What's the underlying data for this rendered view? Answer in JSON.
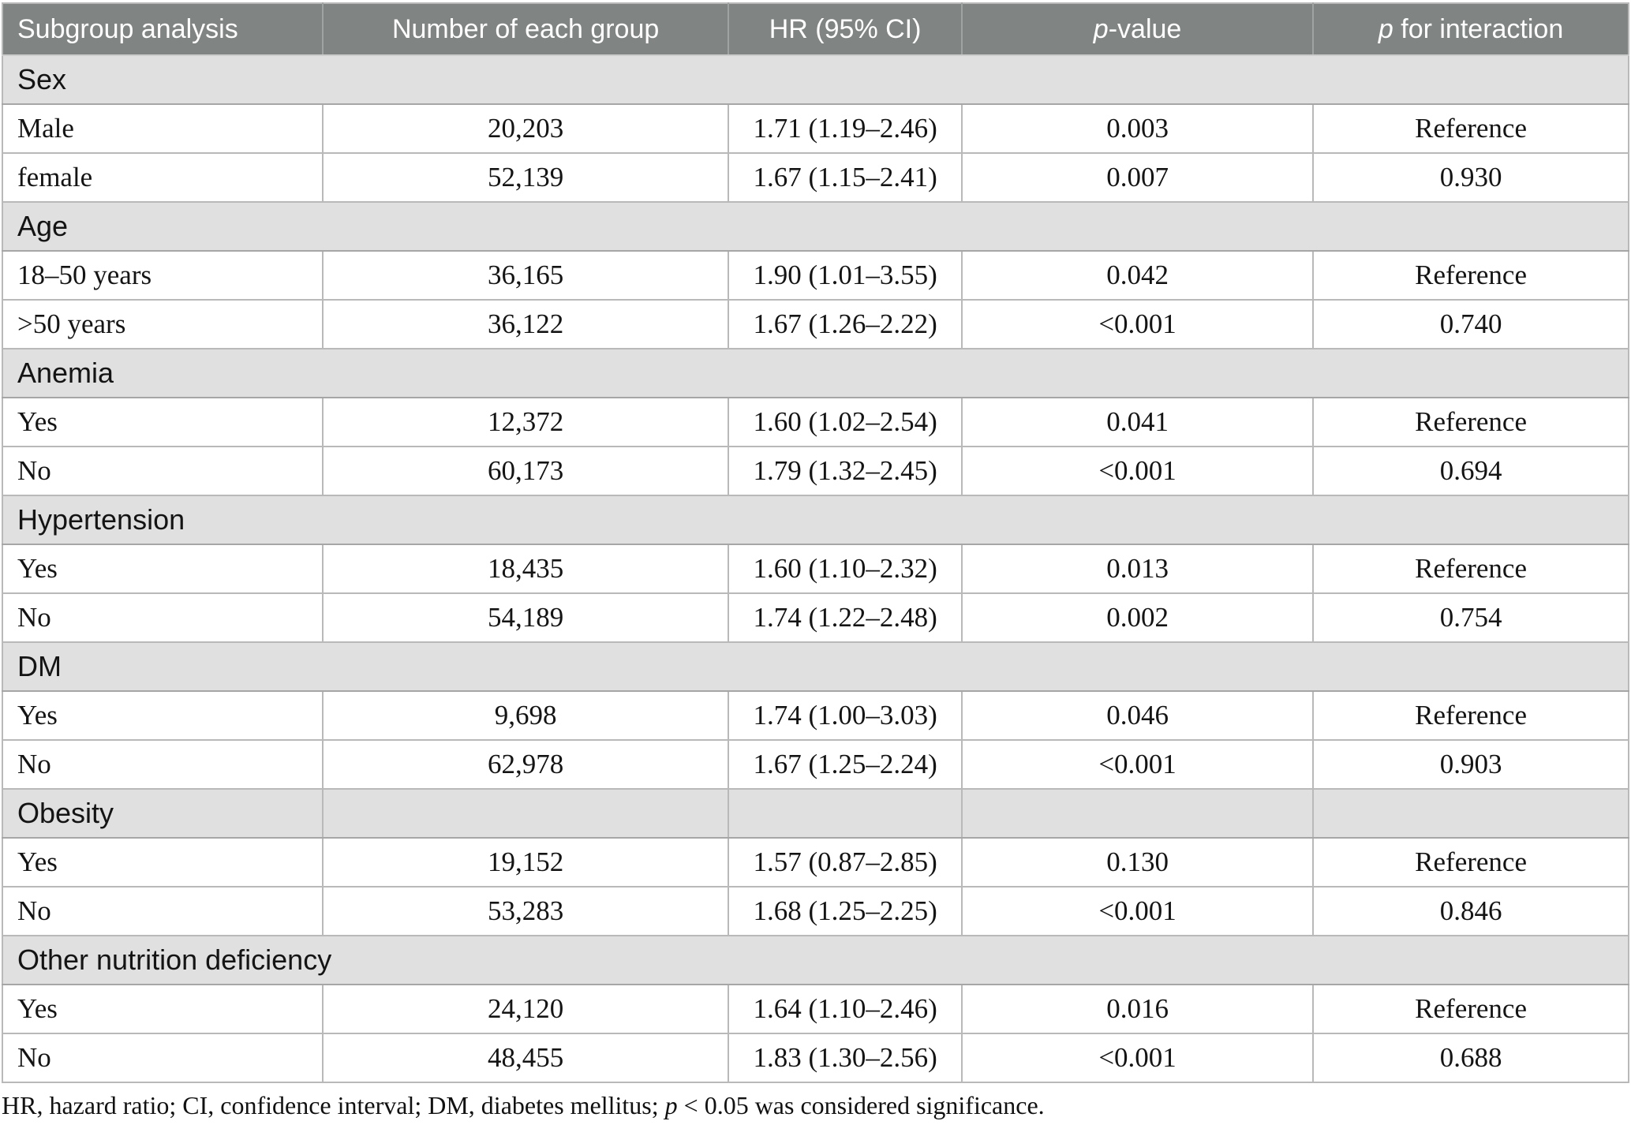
{
  "colors": {
    "header_bg": "#808483",
    "header_text": "#ffffff",
    "header_divider": "#9fa3a2",
    "section_bg": "#e0e0e0",
    "border_light": "#b9b9b9",
    "border_dark": "#a6a6a6",
    "text": "#141414"
  },
  "table": {
    "header": [
      {
        "parts": [
          {
            "t": "Subgroup analysis"
          }
        ]
      },
      {
        "parts": [
          {
            "t": "Number of each group"
          }
        ]
      },
      {
        "parts": [
          {
            "t": "HR (95% CI)"
          }
        ]
      },
      {
        "parts": [
          {
            "t": "p",
            "i": true
          },
          {
            "t": "-value"
          }
        ]
      },
      {
        "parts": [
          {
            "t": "p",
            "i": true
          },
          {
            "t": " for interaction"
          }
        ]
      }
    ],
    "sections": [
      {
        "label": "Sex",
        "split_cells": false,
        "rows": [
          {
            "name": "Male",
            "n": "20,203",
            "hr": "1.71 (1.19–2.46)",
            "p": "0.003",
            "p_interaction": "Reference"
          },
          {
            "name": "female",
            "n": "52,139",
            "hr": "1.67 (1.15–2.41)",
            "p": "0.007",
            "p_interaction": "0.930"
          }
        ]
      },
      {
        "label": "Age",
        "split_cells": false,
        "rows": [
          {
            "name": "18–50 years",
            "n": "36,165",
            "hr": "1.90 (1.01–3.55)",
            "p": "0.042",
            "p_interaction": "Reference"
          },
          {
            "name": ">50 years",
            "n": "36,122",
            "hr": "1.67 (1.26–2.22)",
            "p": "<0.001",
            "p_interaction": "0.740"
          }
        ]
      },
      {
        "label": "Anemia",
        "split_cells": false,
        "rows": [
          {
            "name": "Yes",
            "n": "12,372",
            "hr": "1.60 (1.02–2.54)",
            "p": "0.041",
            "p_interaction": "Reference"
          },
          {
            "name": "No",
            "n": "60,173",
            "hr": "1.79 (1.32–2.45)",
            "p": "<0.001",
            "p_interaction": "0.694"
          }
        ]
      },
      {
        "label": "Hypertension",
        "split_cells": false,
        "rows": [
          {
            "name": "Yes",
            "n": "18,435",
            "hr": "1.60 (1.10–2.32)",
            "p": "0.013",
            "p_interaction": "Reference"
          },
          {
            "name": "No",
            "n": "54,189",
            "hr": "1.74 (1.22–2.48)",
            "p": "0.002",
            "p_interaction": "0.754"
          }
        ]
      },
      {
        "label": "DM",
        "split_cells": false,
        "rows": [
          {
            "name": "Yes",
            "n": "9,698",
            "hr": "1.74 (1.00–3.03)",
            "p": "0.046",
            "p_interaction": "Reference"
          },
          {
            "name": "No",
            "n": "62,978",
            "hr": "1.67 (1.25–2.24)",
            "p": "<0.001",
            "p_interaction": "0.903"
          }
        ]
      },
      {
        "label": "Obesity",
        "split_cells": true,
        "rows": [
          {
            "name": "Yes",
            "n": "19,152",
            "hr": "1.57 (0.87–2.85)",
            "p": "0.130",
            "p_interaction": "Reference"
          },
          {
            "name": "No",
            "n": "53,283",
            "hr": "1.68 (1.25–2.25)",
            "p": "<0.001",
            "p_interaction": "0.846"
          }
        ]
      },
      {
        "label": "Other nutrition deficiency",
        "split_cells": false,
        "rows": [
          {
            "name": "Yes",
            "n": "24,120",
            "hr": "1.64 (1.10–2.46)",
            "p": "0.016",
            "p_interaction": "Reference"
          },
          {
            "name": "No",
            "n": "48,455",
            "hr": "1.83 (1.30–2.56)",
            "p": "<0.001",
            "p_interaction": "0.688"
          }
        ]
      }
    ],
    "footnote": {
      "parts": [
        {
          "t": "HR, hazard ratio; CI, confidence interval; DM, diabetes mellitus; "
        },
        {
          "t": "p",
          "i": true
        },
        {
          "t": " < 0.05 was considered significance."
        }
      ]
    }
  }
}
